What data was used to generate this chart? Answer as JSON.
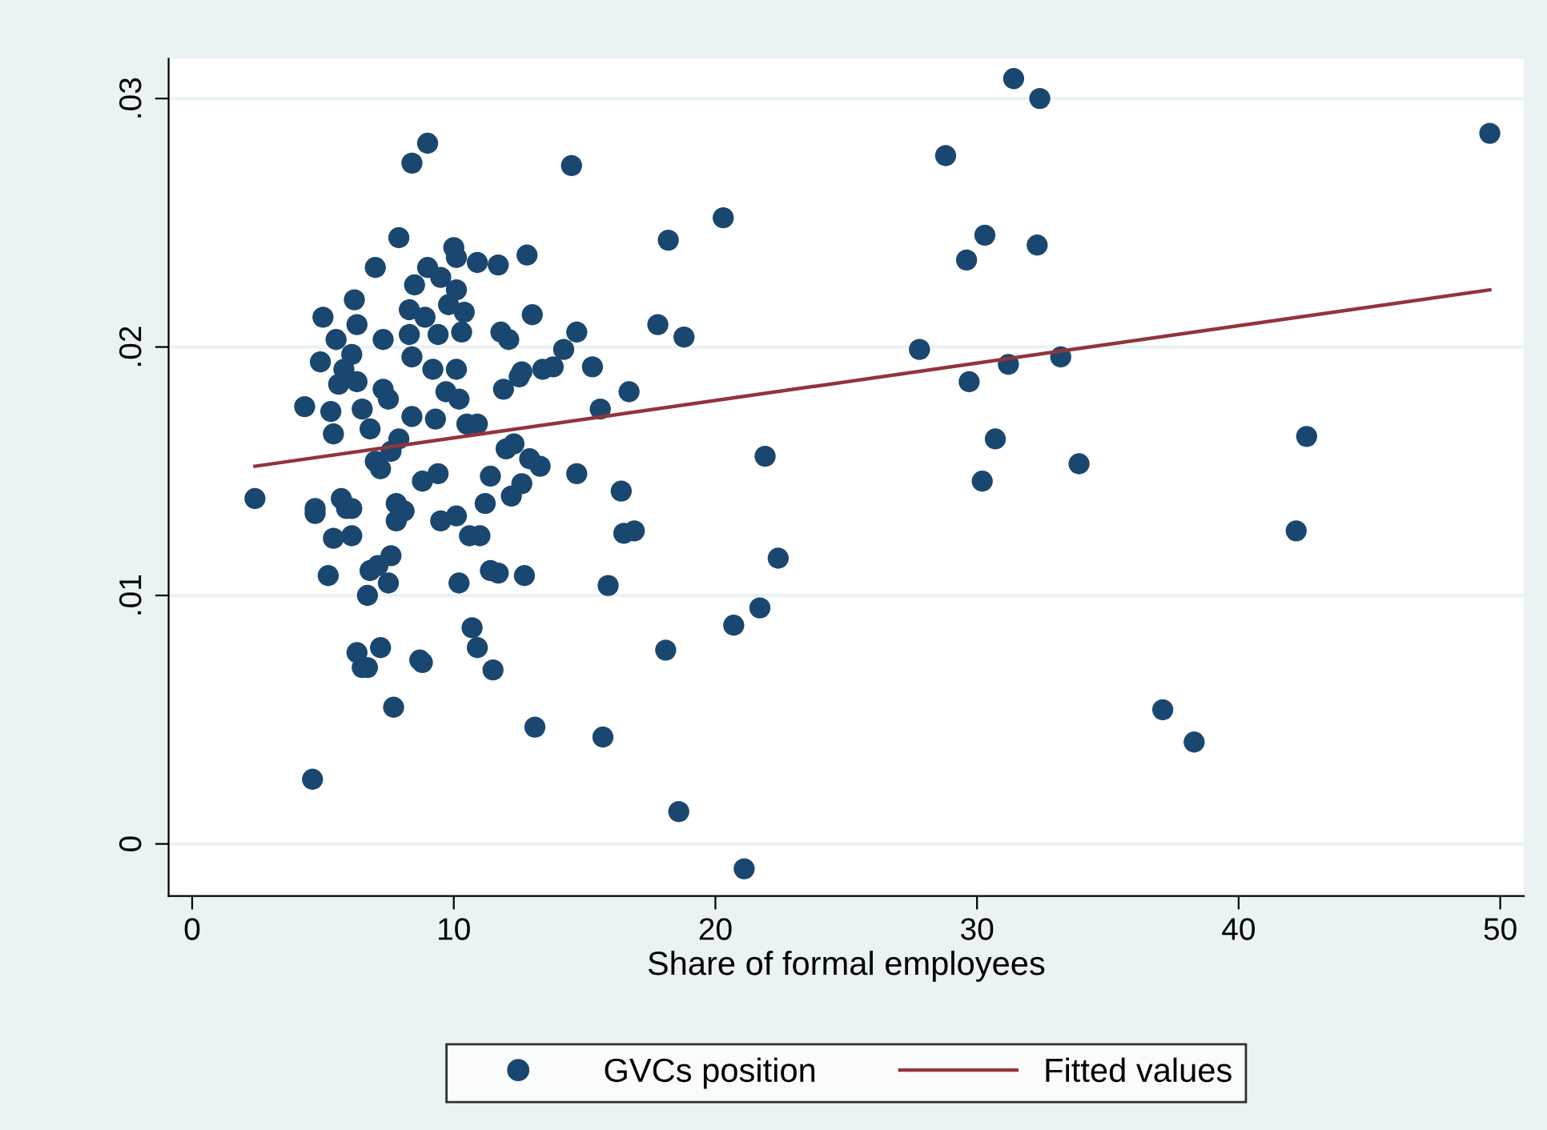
{
  "chart_data": {
    "type": "scatter",
    "xlabel": "Share of formal employees",
    "xlim": [
      -0.9,
      50.9
    ],
    "xticks": [
      0,
      10,
      20,
      30,
      40,
      50
    ],
    "ylim": [
      -0.0021,
      0.0316
    ],
    "yticks": [
      {
        "value": 0,
        "label": "0"
      },
      {
        "value": 0.01,
        "label": ".01"
      },
      {
        "value": 0.02,
        "label": ".02"
      },
      {
        "value": 0.03,
        "label": ".03"
      }
    ],
    "grid": "y",
    "legend": "bottom",
    "series": [
      {
        "name": "GVCs position",
        "marker": "circle",
        "color": "#1a476f",
        "x": [
          2.4,
          4.3,
          4.6,
          4.7,
          4.7,
          4.9,
          5.0,
          5.2,
          5.3,
          5.4,
          5.4,
          5.5,
          5.6,
          5.7,
          5.8,
          5.9,
          6.1,
          6.1,
          6.1,
          6.2,
          6.3,
          6.3,
          6.3,
          6.5,
          6.7,
          6.5,
          6.7,
          6.8,
          7.1,
          6.8,
          7.0,
          7.2,
          7.0,
          7.2,
          7.3,
          7.3,
          7.5,
          7.5,
          7.6,
          7.7,
          7.6,
          7.8,
          7.8,
          7.9,
          7.9,
          8.1,
          8.3,
          8.3,
          8.4,
          8.4,
          8.5,
          8.4,
          8.7,
          8.8,
          8.8,
          8.9,
          9.0,
          9.0,
          9.2,
          9.3,
          9.4,
          9.4,
          9.5,
          9.5,
          9.7,
          9.8,
          10.0,
          10.1,
          10.1,
          10.2,
          10.3,
          10.1,
          10.2,
          10.4,
          10.5,
          10.6,
          10.7,
          10.9,
          10.9,
          10.9,
          11.0,
          11.2,
          11.4,
          11.5,
          11.7,
          11.8,
          11.7,
          11.9,
          12.0,
          12.1,
          12.2,
          12.3,
          12.5,
          12.6,
          12.7,
          12.8,
          13.0,
          13.1,
          13.3,
          13.4,
          14.2,
          14.5,
          14.7,
          14.7,
          15.3,
          15.6,
          15.7,
          15.9,
          16.4,
          16.5,
          16.9,
          16.7,
          17.8,
          18.1,
          18.2,
          18.6,
          18.8,
          20.3,
          20.7,
          21.1,
          21.7,
          21.9,
          22.4,
          27.8,
          28.8,
          29.6,
          29.7,
          30.2,
          30.3,
          30.7,
          31.2,
          31.4,
          32.3,
          32.4,
          33.2,
          33.9,
          37.1,
          38.3,
          42.2,
          42.6,
          49.6,
          10.1,
          12.6,
          13.8,
          12.9,
          11.4
        ],
        "values": [
          0.0139,
          0.0176,
          0.0026,
          0.0135,
          0.0133,
          0.0194,
          0.0212,
          0.0108,
          0.0174,
          0.0165,
          0.0123,
          0.0203,
          0.0185,
          0.0139,
          0.0191,
          0.0135,
          0.0135,
          0.0124,
          0.0197,
          0.0219,
          0.0209,
          0.0186,
          0.0077,
          0.0071,
          0.0071,
          0.0175,
          0.01,
          0.011,
          0.0112,
          0.0167,
          0.0232,
          0.0151,
          0.0154,
          0.0079,
          0.0203,
          0.0183,
          0.0179,
          0.0105,
          0.0116,
          0.0055,
          0.0158,
          0.0137,
          0.013,
          0.0244,
          0.0163,
          0.0134,
          0.0215,
          0.0205,
          0.0274,
          0.0196,
          0.0225,
          0.0172,
          0.0074,
          0.0073,
          0.0146,
          0.0212,
          0.0282,
          0.0232,
          0.0191,
          0.0171,
          0.0149,
          0.0205,
          0.013,
          0.0228,
          0.0182,
          0.0217,
          0.024,
          0.0223,
          0.0191,
          0.0179,
          0.0206,
          0.0132,
          0.0105,
          0.0214,
          0.0169,
          0.0124,
          0.0087,
          0.0079,
          0.0234,
          0.0169,
          0.0124,
          0.0137,
          0.0148,
          0.007,
          0.0233,
          0.0206,
          0.0109,
          0.0183,
          0.0159,
          0.0203,
          0.014,
          0.0161,
          0.0188,
          0.0145,
          0.0108,
          0.0237,
          0.0213,
          0.0047,
          0.0152,
          0.0191,
          0.0199,
          0.0273,
          0.0149,
          0.0206,
          0.0192,
          0.0175,
          0.0043,
          0.0104,
          0.0142,
          0.0125,
          0.0126,
          0.0182,
          0.0209,
          0.0078,
          0.0243,
          0.0013,
          0.0204,
          0.0252,
          0.0088,
          -0.001,
          0.0095,
          0.0156,
          0.0115,
          0.0199,
          0.0277,
          0.0235,
          0.0186,
          0.0146,
          0.0245,
          0.0163,
          0.0193,
          0.0308,
          0.0241,
          0.03,
          0.0196,
          0.0153,
          0.0054,
          0.0041,
          0.0126,
          0.0164,
          0.0286,
          0.0236,
          0.019,
          0.0192,
          0.0155,
          0.011
        ]
      },
      {
        "name": "Fitted values",
        "type": "line",
        "marker": "none",
        "color": "#90353b",
        "x": [
          2.4,
          49.6
        ],
        "values": [
          0.0152,
          0.0223
        ]
      }
    ]
  }
}
